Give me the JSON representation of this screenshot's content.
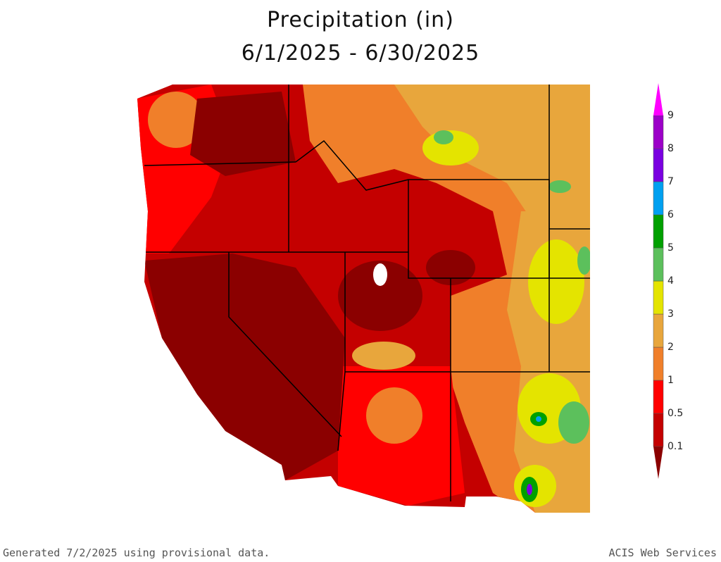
{
  "header": {
    "title": "Precipitation (in)",
    "subtitle": "6/1/2025 - 6/30/2025"
  },
  "legend": {
    "labels": [
      "0.1",
      "0.5",
      "1",
      "2",
      "3",
      "4",
      "5",
      "6",
      "7",
      "8",
      "9"
    ],
    "colors": [
      "#8b0000",
      "#c40000",
      "#ff0000",
      "#f07f2a",
      "#e8a63c",
      "#e4e400",
      "#5cc05c",
      "#00a000",
      "#00a0f0",
      "#7a00e0",
      "#9c00c8",
      "#ff00ff"
    ]
  },
  "footer": {
    "left": "Generated 7/2/2025 using provisional data.",
    "right": "ACIS Web Services"
  }
}
